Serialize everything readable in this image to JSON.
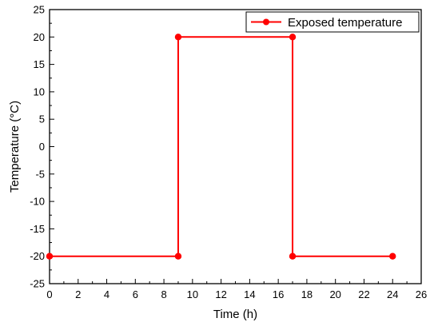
{
  "chart_data": {
    "type": "line",
    "title": "",
    "xlabel": "Time (h)",
    "ylabel": "Temperature (°C)",
    "xlim": [
      0,
      26
    ],
    "ylim": [
      -25,
      25
    ],
    "xticks": [
      0,
      2,
      4,
      6,
      8,
      10,
      12,
      14,
      16,
      18,
      20,
      22,
      24,
      26
    ],
    "yticks": [
      -25,
      -20,
      -15,
      -10,
      -5,
      0,
      5,
      10,
      15,
      20,
      25
    ],
    "grid": false,
    "legend": {
      "position": "top-right"
    },
    "series": [
      {
        "name": "Exposed temperature",
        "color": "#ff0000",
        "marker": "circle",
        "x": [
          0,
          9,
          9,
          17,
          17,
          24
        ],
        "y": [
          -20,
          -20,
          20,
          20,
          -20,
          -20
        ]
      }
    ]
  }
}
